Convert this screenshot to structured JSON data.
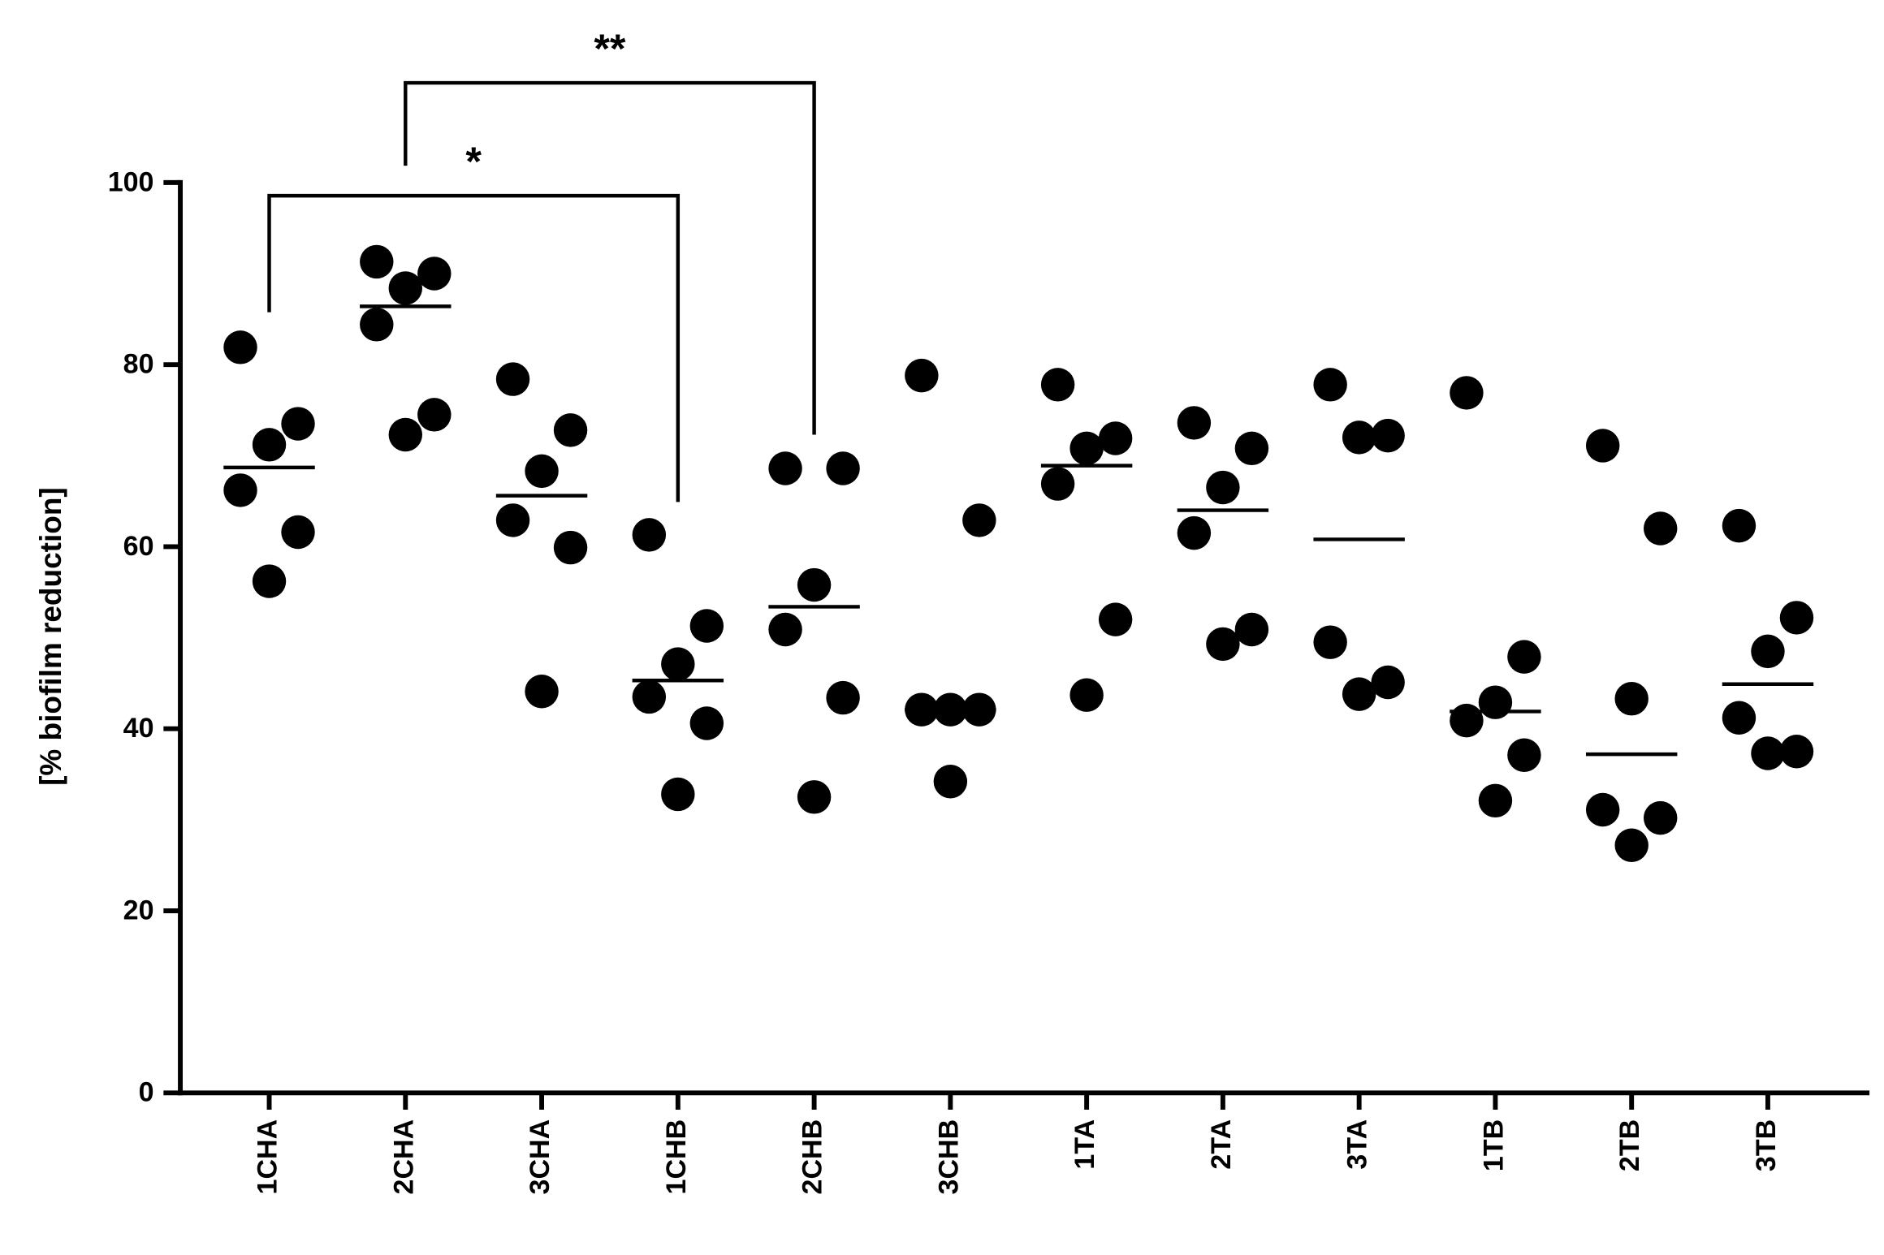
{
  "chart_data": {
    "type": "dot",
    "y_label": "[% biofilm reduction]",
    "categories": [
      "1CHA",
      "2CHA",
      "3CHA",
      "1CHB",
      "2CHB",
      "3CHB",
      "1TA",
      "2TA",
      "3TA",
      "1TB",
      "2TB",
      "3TB"
    ],
    "values": [
      [
        81.9,
        73.5,
        71.2,
        66.2,
        61.6,
        56.2
      ],
      [
        91.3,
        90.0,
        88.4,
        84.4,
        74.5,
        72.3
      ],
      [
        78.4,
        72.8,
        68.3,
        62.9,
        59.9,
        44.1
      ],
      [
        61.3,
        51.3,
        47.1,
        43.5,
        40.6,
        32.8
      ],
      [
        68.6,
        68.6,
        55.8,
        50.9,
        43.4,
        32.5
      ],
      [
        78.8,
        62.9,
        42.1,
        42.1,
        42.1,
        34.2
      ],
      [
        77.8,
        71.9,
        70.8,
        66.9,
        52.0,
        43.7
      ],
      [
        73.6,
        70.8,
        66.5,
        61.5,
        50.9,
        49.3
      ],
      [
        77.8,
        72.2,
        72.0,
        49.5,
        45.1,
        43.8
      ],
      [
        76.9,
        47.9,
        42.9,
        40.9,
        37.1,
        32.1
      ],
      [
        71.1,
        62.0,
        43.3,
        31.1,
        30.2,
        27.2
      ],
      [
        62.3,
        52.2,
        48.5,
        41.2,
        37.5,
        37.3
      ]
    ],
    "medians": [
      68.7,
      86.4,
      65.6,
      45.3,
      53.4,
      42.1,
      68.9,
      64.0,
      60.8,
      41.9,
      37.2,
      44.9
    ],
    "color": "#000000",
    "ylim": [
      0,
      100
    ],
    "yticks": [
      0,
      20,
      40,
      60,
      80,
      100
    ],
    "annotations": [
      {
        "label": "*",
        "from": "1CHA",
        "to": "1CHB"
      },
      {
        "label": "**",
        "from": "2CHA",
        "to": "2CHB"
      }
    ]
  }
}
